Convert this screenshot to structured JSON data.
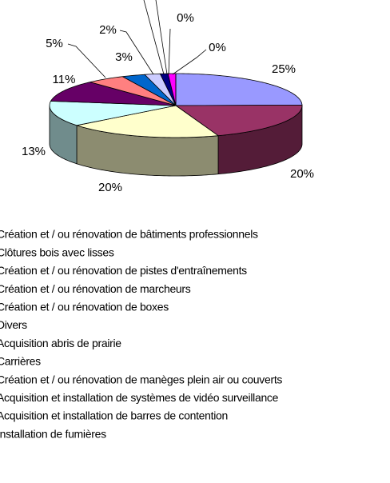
{
  "chart_data": {
    "type": "pie3d",
    "categories": [
      "Création et / ou rénovation de bâtiments professionnels",
      "Clôtures bois avec lisses",
      "Création et / ou rénovation de pistes d'entraînements",
      "Création et / ou rénovation de marcheurs",
      "Création et / ou rénovation de boxes",
      "Divers",
      "Acquisition abris de prairie",
      "Carrières",
      "Création et / ou rénovation de manèges plein air ou couverts",
      "Acquisition et installation de systèmes de vidéo surveillance",
      "Acquisition et installation de barres de contention",
      "Installation de fumières"
    ],
    "values": [
      25,
      20,
      20,
      13,
      11,
      5,
      3,
      2,
      1,
      1,
      0,
      0
    ],
    "value_labels": [
      "25%",
      "20%",
      "20%",
      "13%",
      "11%",
      "5%",
      "3%",
      "2%",
      null,
      null,
      "0%",
      "0%"
    ],
    "colors": [
      "#9999ff",
      "#993366",
      "#ffffcc",
      "#ccffff",
      "#660066",
      "#ff8080",
      "#0066cc",
      "#ccccff",
      "#000080",
      "#ff00ff",
      "#ffff00",
      "#00ffff"
    ]
  }
}
